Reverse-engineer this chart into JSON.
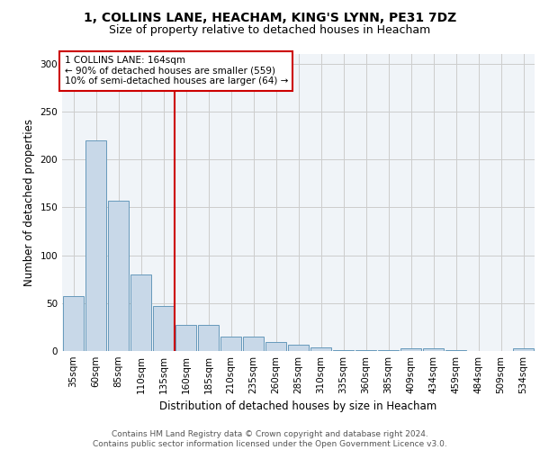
{
  "title1": "1, COLLINS LANE, HEACHAM, KING'S LYNN, PE31 7DZ",
  "title2": "Size of property relative to detached houses in Heacham",
  "xlabel": "Distribution of detached houses by size in Heacham",
  "ylabel": "Number of detached properties",
  "bar_labels": [
    "35sqm",
    "60sqm",
    "85sqm",
    "110sqm",
    "135sqm",
    "160sqm",
    "185sqm",
    "210sqm",
    "235sqm",
    "260sqm",
    "285sqm",
    "310sqm",
    "335sqm",
    "360sqm",
    "385sqm",
    "409sqm",
    "434sqm",
    "459sqm",
    "484sqm",
    "509sqm",
    "534sqm"
  ],
  "bar_values": [
    57,
    220,
    157,
    80,
    47,
    27,
    27,
    15,
    15,
    9,
    7,
    4,
    1,
    1,
    1,
    3,
    3,
    1,
    0,
    0,
    3
  ],
  "bar_color": "#c8d8e8",
  "bar_edgecolor": "#6699bb",
  "vline_x": 4.5,
  "vline_color": "#cc0000",
  "annotation_text": "1 COLLINS LANE: 164sqm\n← 90% of detached houses are smaller (559)\n10% of semi-detached houses are larger (64) →",
  "annotation_box_color": "#ffffff",
  "annotation_box_edgecolor": "#cc0000",
  "ylim": [
    0,
    310
  ],
  "yticks": [
    0,
    50,
    100,
    150,
    200,
    250,
    300
  ],
  "footer_text": "Contains HM Land Registry data © Crown copyright and database right 2024.\nContains public sector information licensed under the Open Government Licence v3.0.",
  "bg_color": "#f0f4f8",
  "grid_color": "#cccccc",
  "title1_fontsize": 10,
  "title2_fontsize": 9,
  "xlabel_fontsize": 8.5,
  "ylabel_fontsize": 8.5,
  "tick_fontsize": 7.5,
  "annotation_fontsize": 7.5,
  "footer_fontsize": 6.5
}
